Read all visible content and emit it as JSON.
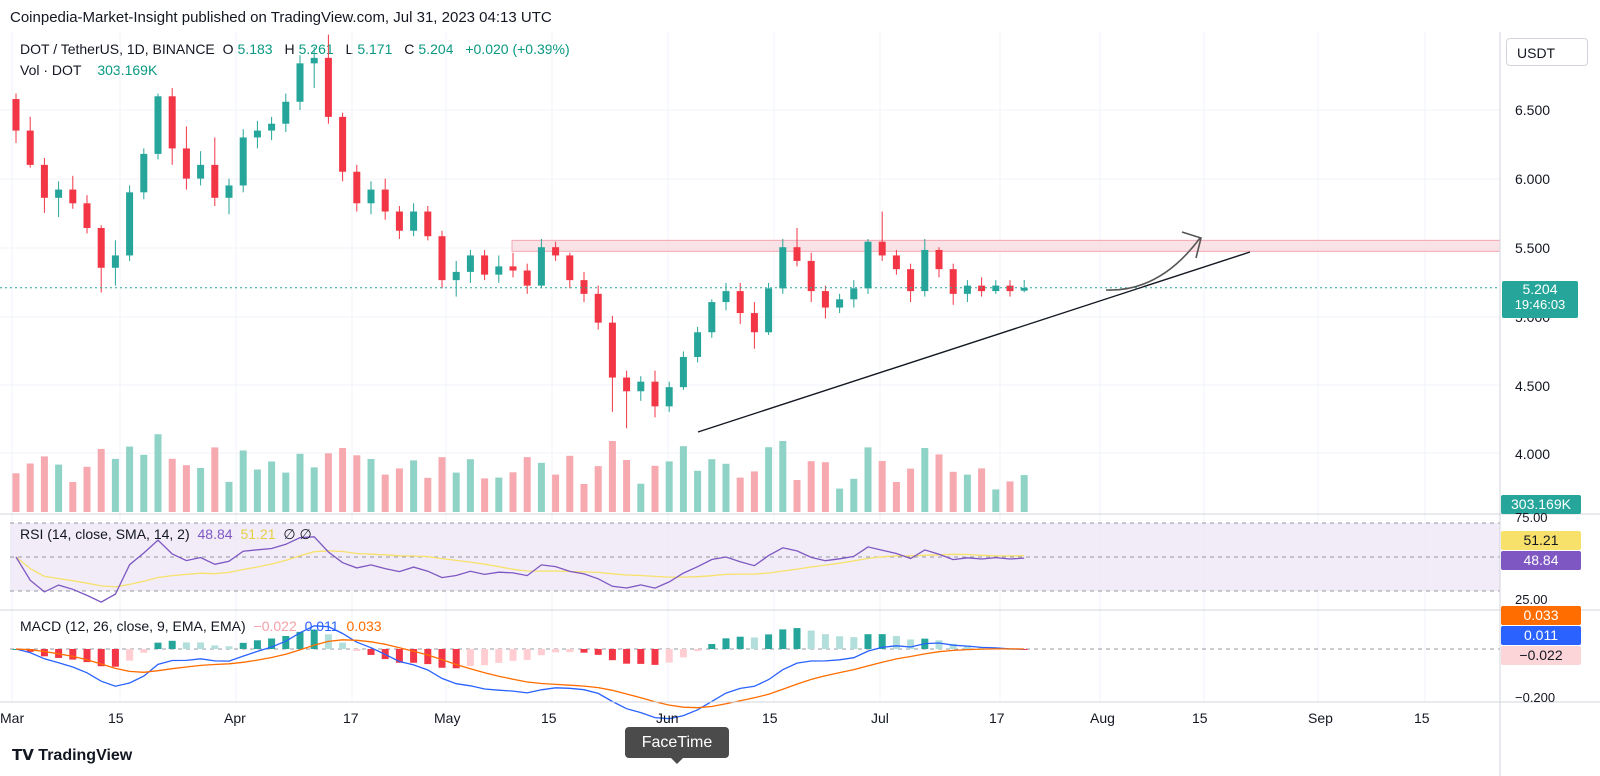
{
  "header": {
    "published_by": "Coinpedia-Market-Insight published on TradingView.com, Jul 31, 2023 04:13 UTC"
  },
  "legend": {
    "symbol": "DOT / TetherUS, 1D, BINANCE",
    "o_label": "O",
    "o": "5.183",
    "h_label": "H",
    "h": "5.261",
    "l_label": "L",
    "l": "5.171",
    "c_label": "C",
    "c": "5.204",
    "change": "+0.020 (+0.39%)",
    "vol_label": "Vol · DOT",
    "vol": "303.169K"
  },
  "currency": "USDT",
  "price_axis": [
    "6.500",
    "6.000",
    "5.500",
    "5.000",
    "4.500",
    "4.000"
  ],
  "last_price": {
    "price": "5.204",
    "countdown": "19:46:03",
    "volume": "303.169K"
  },
  "rsi": {
    "label": "RSI (14, close, SMA, 14, 2)",
    "value": "48.84",
    "sma": "51.21",
    "extra": "∅ ∅",
    "axis_top": "75.00",
    "axis_bottom": "25.00"
  },
  "macd": {
    "label": "MACD (12, 26, close, 9, EMA, EMA)",
    "hist": "−0.022",
    "macd": "0.011",
    "signal": "0.033",
    "axis_bottom": "−0.200"
  },
  "time_axis": [
    "Mar",
    "15",
    "Apr",
    "17",
    "May",
    "15",
    "Jun",
    "15",
    "Jul",
    "17",
    "Aug",
    "15",
    "Sep",
    "15"
  ],
  "footer": {
    "brand": "TradingView",
    "tooltip": "FaceTime"
  },
  "colors": {
    "up": "#26a69a",
    "down": "#f23645",
    "rsi": "#7e57c2",
    "rsi_sma": "#f7e16b",
    "macd": "#2962ff",
    "signal": "#ff6d00",
    "resistance": "#f8d7dc"
  },
  "chart_data": {
    "type": "candlestick",
    "symbol": "DOT / TetherUS",
    "interval": "1D",
    "ylim": [
      3.65,
      7.1
    ],
    "candles": [
      {
        "o": 6.58,
        "h": 6.62,
        "l": 6.26,
        "c": 6.35
      },
      {
        "o": 6.35,
        "h": 6.45,
        "l": 6.08,
        "c": 6.1
      },
      {
        "o": 6.1,
        "h": 6.15,
        "l": 5.75,
        "c": 5.86
      },
      {
        "o": 5.86,
        "h": 5.98,
        "l": 5.72,
        "c": 5.92
      },
      {
        "o": 5.92,
        "h": 6.02,
        "l": 5.78,
        "c": 5.82
      },
      {
        "o": 5.82,
        "h": 5.88,
        "l": 5.6,
        "c": 5.64
      },
      {
        "o": 5.64,
        "h": 5.66,
        "l": 5.17,
        "c": 5.35
      },
      {
        "o": 5.35,
        "h": 5.55,
        "l": 5.22,
        "c": 5.44
      },
      {
        "o": 5.44,
        "h": 5.95,
        "l": 5.4,
        "c": 5.9
      },
      {
        "o": 5.9,
        "h": 6.22,
        "l": 5.85,
        "c": 6.18
      },
      {
        "o": 6.18,
        "h": 6.62,
        "l": 6.14,
        "c": 6.6
      },
      {
        "o": 6.6,
        "h": 6.66,
        "l": 6.1,
        "c": 6.22
      },
      {
        "o": 6.22,
        "h": 6.38,
        "l": 5.92,
        "c": 6.0
      },
      {
        "o": 6.0,
        "h": 6.2,
        "l": 5.95,
        "c": 6.1
      },
      {
        "o": 6.1,
        "h": 6.3,
        "l": 5.8,
        "c": 5.86
      },
      {
        "o": 5.86,
        "h": 6.0,
        "l": 5.74,
        "c": 5.95
      },
      {
        "o": 5.95,
        "h": 6.36,
        "l": 5.9,
        "c": 6.3
      },
      {
        "o": 6.3,
        "h": 6.42,
        "l": 6.22,
        "c": 6.35
      },
      {
        "o": 6.35,
        "h": 6.45,
        "l": 6.28,
        "c": 6.4
      },
      {
        "o": 6.4,
        "h": 6.62,
        "l": 6.34,
        "c": 6.56
      },
      {
        "o": 6.56,
        "h": 6.9,
        "l": 6.5,
        "c": 6.84
      },
      {
        "o": 6.84,
        "h": 6.96,
        "l": 6.66,
        "c": 6.88
      },
      {
        "o": 6.88,
        "h": 7.05,
        "l": 6.4,
        "c": 6.45
      },
      {
        "o": 6.45,
        "h": 6.48,
        "l": 5.98,
        "c": 6.05
      },
      {
        "o": 6.05,
        "h": 6.1,
        "l": 5.76,
        "c": 5.82
      },
      {
        "o": 5.82,
        "h": 5.98,
        "l": 5.74,
        "c": 5.92
      },
      {
        "o": 5.92,
        "h": 6.0,
        "l": 5.7,
        "c": 5.76
      },
      {
        "o": 5.76,
        "h": 5.8,
        "l": 5.56,
        "c": 5.62
      },
      {
        "o": 5.62,
        "h": 5.82,
        "l": 5.58,
        "c": 5.76
      },
      {
        "o": 5.76,
        "h": 5.8,
        "l": 5.55,
        "c": 5.58
      },
      {
        "o": 5.58,
        "h": 5.62,
        "l": 5.2,
        "c": 5.26
      },
      {
        "o": 5.26,
        "h": 5.4,
        "l": 5.14,
        "c": 5.32
      },
      {
        "o": 5.32,
        "h": 5.48,
        "l": 5.24,
        "c": 5.44
      },
      {
        "o": 5.44,
        "h": 5.48,
        "l": 5.26,
        "c": 5.3
      },
      {
        "o": 5.3,
        "h": 5.44,
        "l": 5.24,
        "c": 5.36
      },
      {
        "o": 5.36,
        "h": 5.46,
        "l": 5.28,
        "c": 5.33
      },
      {
        "o": 5.33,
        "h": 5.38,
        "l": 5.16,
        "c": 5.22
      },
      {
        "o": 5.22,
        "h": 5.56,
        "l": 5.2,
        "c": 5.5
      },
      {
        "o": 5.5,
        "h": 5.54,
        "l": 5.4,
        "c": 5.44
      },
      {
        "o": 5.44,
        "h": 5.46,
        "l": 5.2,
        "c": 5.26
      },
      {
        "o": 5.26,
        "h": 5.32,
        "l": 5.1,
        "c": 5.16
      },
      {
        "o": 5.16,
        "h": 5.22,
        "l": 4.9,
        "c": 4.95
      },
      {
        "o": 4.95,
        "h": 5.0,
        "l": 4.3,
        "c": 4.55
      },
      {
        "o": 4.55,
        "h": 4.6,
        "l": 4.18,
        "c": 4.45
      },
      {
        "o": 4.45,
        "h": 4.56,
        "l": 4.38,
        "c": 4.52
      },
      {
        "o": 4.52,
        "h": 4.6,
        "l": 4.26,
        "c": 4.34
      },
      {
        "o": 4.34,
        "h": 4.52,
        "l": 4.3,
        "c": 4.48
      },
      {
        "o": 4.48,
        "h": 4.74,
        "l": 4.46,
        "c": 4.7
      },
      {
        "o": 4.7,
        "h": 4.92,
        "l": 4.66,
        "c": 4.88
      },
      {
        "o": 4.88,
        "h": 5.12,
        "l": 4.84,
        "c": 5.1
      },
      {
        "o": 5.1,
        "h": 5.24,
        "l": 5.04,
        "c": 5.18
      },
      {
        "o": 5.18,
        "h": 5.24,
        "l": 4.94,
        "c": 5.02
      },
      {
        "o": 5.02,
        "h": 5.1,
        "l": 4.76,
        "c": 4.88
      },
      {
        "o": 4.88,
        "h": 5.24,
        "l": 4.86,
        "c": 5.2
      },
      {
        "o": 5.2,
        "h": 5.56,
        "l": 5.16,
        "c": 5.5
      },
      {
        "o": 5.5,
        "h": 5.64,
        "l": 5.36,
        "c": 5.4
      },
      {
        "o": 5.4,
        "h": 5.46,
        "l": 5.1,
        "c": 5.18
      },
      {
        "o": 5.18,
        "h": 5.22,
        "l": 4.98,
        "c": 5.06
      },
      {
        "o": 5.06,
        "h": 5.16,
        "l": 5.02,
        "c": 5.12
      },
      {
        "o": 5.12,
        "h": 5.26,
        "l": 5.06,
        "c": 5.2
      },
      {
        "o": 5.2,
        "h": 5.56,
        "l": 5.16,
        "c": 5.54
      },
      {
        "o": 5.54,
        "h": 5.76,
        "l": 5.4,
        "c": 5.44
      },
      {
        "o": 5.44,
        "h": 5.48,
        "l": 5.3,
        "c": 5.34
      },
      {
        "o": 5.34,
        "h": 5.38,
        "l": 5.1,
        "c": 5.18
      },
      {
        "o": 5.18,
        "h": 5.56,
        "l": 5.14,
        "c": 5.48
      },
      {
        "o": 5.48,
        "h": 5.5,
        "l": 5.28,
        "c": 5.34
      },
      {
        "o": 5.34,
        "h": 5.38,
        "l": 5.08,
        "c": 5.16
      },
      {
        "o": 5.16,
        "h": 5.26,
        "l": 5.1,
        "c": 5.22
      },
      {
        "o": 5.22,
        "h": 5.28,
        "l": 5.14,
        "c": 5.18
      },
      {
        "o": 5.18,
        "h": 5.26,
        "l": 5.16,
        "c": 5.22
      },
      {
        "o": 5.22,
        "h": 5.26,
        "l": 5.14,
        "c": 5.18
      },
      {
        "o": 5.183,
        "h": 5.261,
        "l": 5.171,
        "c": 5.204
      }
    ],
    "resistance_zone": [
      5.47,
      5.55
    ],
    "current_price": 5.204
  }
}
